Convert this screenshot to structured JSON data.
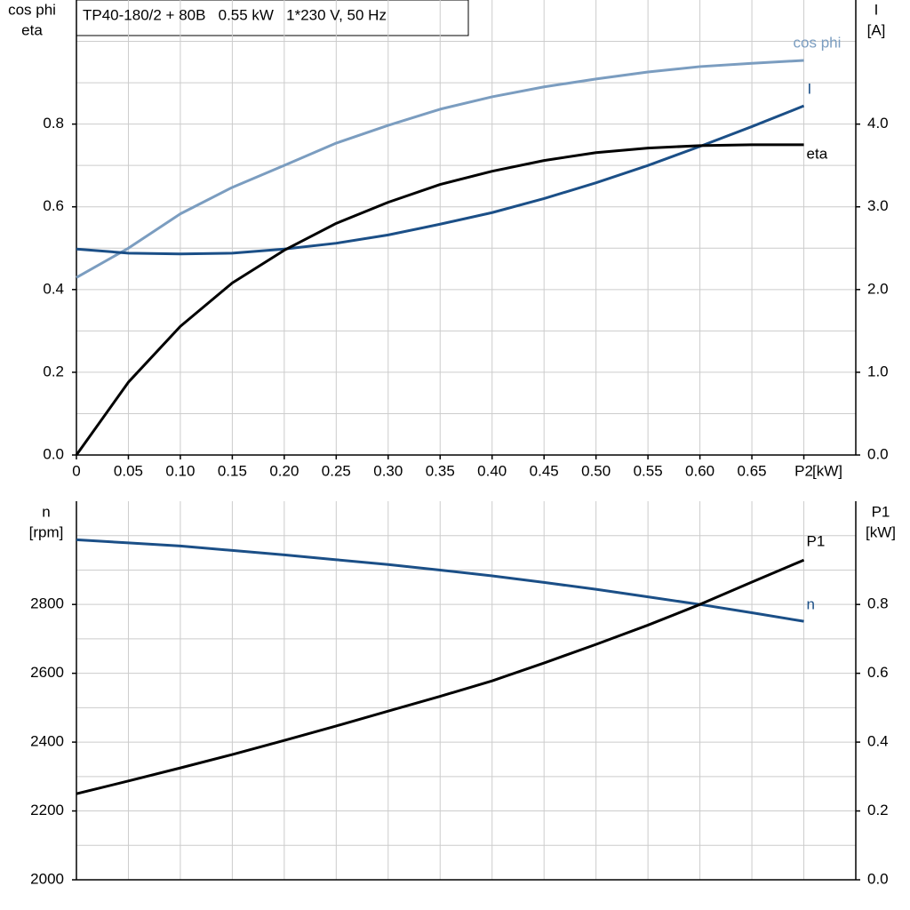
{
  "chart_data": [
    {
      "type": "line",
      "title": "TP40-180/2 + 80B   0.55 kW   1*230 V, 50 Hz",
      "ylabel": [
        "cos phi",
        "eta"
      ],
      "y2label": [
        "I",
        "[A]"
      ],
      "xlabel": "[kW]",
      "x": [
        0,
        0.05,
        0.1,
        0.15,
        0.2,
        0.25,
        0.3,
        0.35,
        0.4,
        0.45,
        0.5,
        0.55,
        0.6,
        0.65,
        0.7
      ],
      "xlim": [
        0,
        0.75
      ],
      "xticks": [
        {
          "value": 0,
          "label": "0"
        },
        0.05,
        {
          "value": 0.1,
          "label": "0.10"
        },
        0.15,
        {
          "value": 0.2,
          "label": "0.20"
        },
        0.25,
        {
          "value": 0.3,
          "label": "0.30"
        },
        0.35,
        {
          "value": 0.4,
          "label": "0.40"
        },
        0.45,
        {
          "value": 0.5,
          "label": "0.50"
        },
        0.55,
        {
          "value": 0.6,
          "label": "0.60"
        },
        0.65,
        {
          "value": 0.7,
          "label": "P2"
        }
      ],
      "ylim": [
        0,
        1.1
      ],
      "yticks": [
        {
          "value": 0,
          "label": "0.0"
        },
        0.2,
        0.4,
        0.6,
        0.8
      ],
      "yminor": [
        0.1,
        0.3,
        0.5,
        0.7,
        0.9,
        1.0
      ],
      "y2lim": [
        0,
        5.5
      ],
      "y2ticks": [
        {
          "value": 0,
          "label": "0.0"
        },
        {
          "value": 1,
          "label": "1.0"
        },
        {
          "value": 2,
          "label": "2.0"
        },
        {
          "value": 3,
          "label": "3.0"
        },
        {
          "value": 4,
          "label": "4.0"
        }
      ],
      "grid": true,
      "series": [
        {
          "name": "cos phi",
          "color": "#7b9dc0",
          "values": [
            0.429,
            0.5,
            0.583,
            0.647,
            0.7,
            0.754,
            0.797,
            0.836,
            0.866,
            0.89,
            0.909,
            0.926,
            0.939,
            0.947,
            0.954
          ]
        },
        {
          "name": "I",
          "color": "#1b4f87",
          "axis": "y2",
          "values": [
            2.49,
            2.44,
            2.43,
            2.44,
            2.49,
            2.56,
            2.66,
            2.79,
            2.93,
            3.1,
            3.29,
            3.5,
            3.73,
            3.97,
            4.22
          ]
        },
        {
          "name": "eta",
          "color": "#000000",
          "values": [
            0,
            0.176,
            0.311,
            0.416,
            0.495,
            0.56,
            0.611,
            0.654,
            0.686,
            0.712,
            0.731,
            0.742,
            0.748,
            0.75,
            0.75
          ]
        }
      ]
    },
    {
      "type": "line",
      "ylabel": [
        "n",
        "[rpm]"
      ],
      "y2label": [
        "P1",
        "[kW]"
      ],
      "x": [
        0,
        0.05,
        0.1,
        0.15,
        0.2,
        0.25,
        0.3,
        0.35,
        0.4,
        0.45,
        0.5,
        0.55,
        0.6,
        0.65,
        0.7
      ],
      "xlim": [
        0,
        0.75
      ],
      "xgrid": [
        0.05,
        0.1,
        0.15,
        0.2,
        0.25,
        0.3,
        0.35,
        0.4,
        0.45,
        0.5,
        0.55,
        0.6,
        0.65,
        0.7
      ],
      "ylim": [
        2000,
        3100
      ],
      "yticks": [
        2000,
        2200,
        2400,
        2600,
        2800
      ],
      "yminor": [
        2100,
        2300,
        2500,
        2700,
        2900,
        3000
      ],
      "y2lim": [
        0,
        1.1
      ],
      "y2ticks": [
        {
          "value": 0,
          "label": "0.0"
        },
        0.2,
        0.4,
        0.6,
        0.8
      ],
      "grid": true,
      "series": [
        {
          "name": "n",
          "color": "#1b4f87",
          "values": [
            2988,
            2979,
            2970,
            2957,
            2944,
            2930,
            2916,
            2900,
            2883,
            2864,
            2844,
            2822,
            2800,
            2776,
            2751
          ]
        },
        {
          "name": "P1",
          "color": "#000000",
          "axis": "y2",
          "values": [
            0.25,
            0.287,
            0.325,
            0.364,
            0.405,
            0.447,
            0.49,
            0.533,
            0.578,
            0.63,
            0.684,
            0.74,
            0.8,
            0.865,
            0.929
          ]
        }
      ]
    }
  ]
}
